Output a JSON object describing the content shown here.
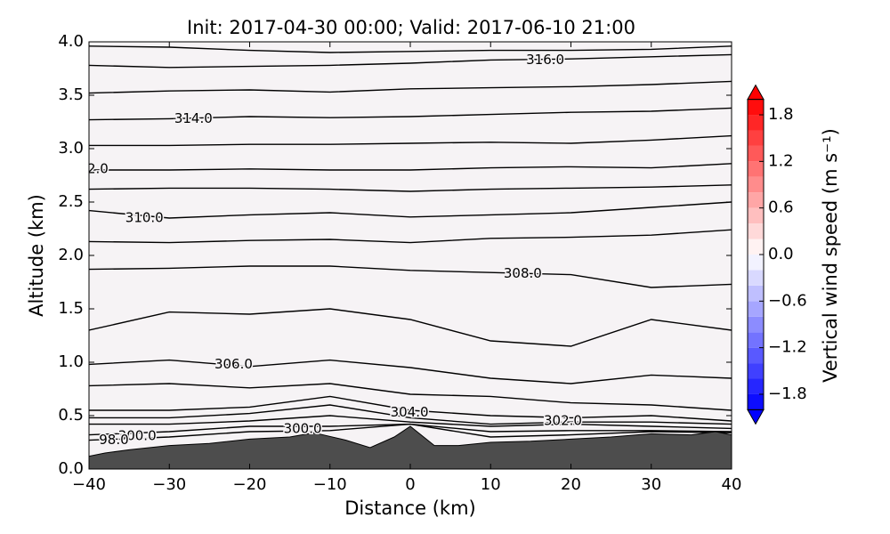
{
  "chart_data": {
    "type": "contour",
    "title": "Init: 2017-04-30 00:00; Valid: 2017-06-10 21:00",
    "xlabel": "Distance (km)",
    "ylabel": "Altitude (km)",
    "xlim": [
      -40,
      40
    ],
    "ylim": [
      0,
      4
    ],
    "xticks": [
      {
        "value": -40,
        "label": "−40"
      },
      {
        "value": -30,
        "label": "−30"
      },
      {
        "value": -20,
        "label": "−20"
      },
      {
        "value": -10,
        "label": "−10"
      },
      0,
      10,
      20,
      30,
      40
    ],
    "yticks": [
      {
        "value": 0,
        "label": "0.0"
      },
      {
        "value": 0.5,
        "label": "0.5"
      },
      {
        "value": 1,
        "label": "1.0"
      },
      {
        "value": 1.5,
        "label": "1.5"
      },
      {
        "value": 2,
        "label": "2.0"
      },
      {
        "value": 2.5,
        "label": "2.5"
      },
      {
        "value": 3,
        "label": "3.0"
      },
      {
        "value": 3.5,
        "label": "3.5"
      },
      {
        "value": 4,
        "label": "4.0"
      }
    ],
    "contour_color": "#000000",
    "contour_x": [
      -40,
      -30,
      -20,
      -10,
      0,
      10,
      20,
      30,
      40
    ],
    "contours": [
      {
        "level": 317,
        "y": [
          3.96,
          3.95,
          3.92,
          3.9,
          3.91,
          3.92,
          3.92,
          3.93,
          3.96
        ]
      },
      {
        "level": 316,
        "y": [
          3.78,
          3.76,
          3.77,
          3.78,
          3.8,
          3.83,
          3.84,
          3.86,
          3.88
        ]
      },
      {
        "level": 315,
        "y": [
          3.52,
          3.54,
          3.55,
          3.53,
          3.56,
          3.57,
          3.58,
          3.6,
          3.63
        ]
      },
      {
        "level": 314,
        "y": [
          3.27,
          3.28,
          3.3,
          3.29,
          3.3,
          3.32,
          3.34,
          3.35,
          3.38
        ]
      },
      {
        "level": 313,
        "y": [
          3.03,
          3.03,
          3.04,
          3.04,
          3.05,
          3.06,
          3.05,
          3.08,
          3.12
        ]
      },
      {
        "level": 312,
        "y": [
          2.8,
          2.8,
          2.81,
          2.8,
          2.8,
          2.82,
          2.83,
          2.82,
          2.86
        ]
      },
      {
        "level": 311,
        "y": [
          2.62,
          2.63,
          2.63,
          2.62,
          2.6,
          2.62,
          2.63,
          2.64,
          2.66
        ]
      },
      {
        "level": 310,
        "y": [
          2.42,
          2.35,
          2.38,
          2.4,
          2.36,
          2.38,
          2.4,
          2.45,
          2.5
        ]
      },
      {
        "level": 309,
        "y": [
          2.13,
          2.12,
          2.14,
          2.15,
          2.12,
          2.16,
          2.17,
          2.19,
          2.24
        ]
      },
      {
        "level": 308,
        "y": [
          1.87,
          1.88,
          1.9,
          1.9,
          1.86,
          1.84,
          1.82,
          1.7,
          1.73
        ]
      },
      {
        "level": 307,
        "y": [
          1.3,
          1.47,
          1.45,
          1.5,
          1.4,
          1.2,
          1.15,
          1.4,
          1.3
        ]
      },
      {
        "level": 306,
        "y": [
          0.98,
          1.02,
          0.96,
          1.02,
          0.95,
          0.85,
          0.8,
          0.88,
          0.85
        ]
      },
      {
        "level": 305,
        "y": [
          0.78,
          0.8,
          0.76,
          0.8,
          0.7,
          0.68,
          0.62,
          0.6,
          0.55
        ]
      },
      {
        "level": 304,
        "y": [
          0.55,
          0.55,
          0.58,
          0.68,
          0.55,
          0.5,
          0.48,
          0.5,
          0.45
        ]
      },
      {
        "level": 303,
        "y": [
          0.48,
          0.48,
          0.52,
          0.6,
          0.48,
          0.42,
          0.44,
          0.44,
          0.42
        ]
      },
      {
        "level": 302,
        "y": [
          0.42,
          0.42,
          0.45,
          0.5,
          0.44,
          0.4,
          0.42,
          0.4,
          0.38
        ]
      },
      {
        "level": 300,
        "y": [
          0.32,
          0.35,
          0.4,
          0.4,
          0.42,
          0.35,
          0.36,
          0.36,
          0.35
        ]
      },
      {
        "level": 298,
        "y": [
          0.27,
          0.3,
          0.35,
          0.36,
          0.42,
          0.3,
          0.32,
          0.35,
          0.34
        ]
      }
    ],
    "contour_labels": [
      {
        "text": "316.0",
        "x": 16.8,
        "y": 3.83
      },
      {
        "text": "314.0",
        "x": -27,
        "y": 3.28
      },
      {
        "text": "2.0",
        "x": -38.9,
        "y": 2.81
      },
      {
        "text": "310.0",
        "x": -33.1,
        "y": 2.35
      },
      {
        "text": "308.0",
        "x": 14,
        "y": 1.83
      },
      {
        "text": "306.0",
        "x": -22,
        "y": 0.98
      },
      {
        "text": "304.0",
        "x": -0.1,
        "y": 0.53
      },
      {
        "text": "302.0",
        "x": 19,
        "y": 0.45
      },
      {
        "text": "300.0",
        "x": -34,
        "y": 0.31
      },
      {
        "text": "98.0",
        "x": -36.9,
        "y": 0.27
      },
      {
        "text": "300.0",
        "x": -13.4,
        "y": 0.375
      }
    ],
    "terrain": {
      "color": "#4d4d4d",
      "x": [
        -40,
        -38,
        -35,
        -30,
        -25,
        -20,
        -15,
        -12,
        -8,
        -5,
        -2,
        0,
        3,
        6,
        10,
        15,
        20,
        25,
        30,
        35,
        38,
        40
      ],
      "y": [
        0.12,
        0.15,
        0.18,
        0.22,
        0.24,
        0.28,
        0.3,
        0.34,
        0.27,
        0.2,
        0.3,
        0.4,
        0.22,
        0.22,
        0.25,
        0.26,
        0.28,
        0.3,
        0.33,
        0.32,
        0.35,
        0.32
      ]
    },
    "colorbar": {
      "label": "Vertical wind speed (m s⁻¹)",
      "colormap": "bwr",
      "lim": [
        -2,
        2
      ],
      "levels": [
        -2,
        -1.8,
        -1.6,
        -1.4,
        -1.2,
        -1,
        -0.8,
        -0.6,
        -0.4,
        -0.2,
        0,
        0.2,
        0.4,
        0.6,
        0.8,
        1,
        1.2,
        1.4,
        1.6,
        1.8,
        2
      ],
      "ticks": [
        {
          "value": -1.8,
          "label": "−1.8"
        },
        {
          "value": -1.2,
          "label": "−1.2"
        },
        {
          "value": -0.6,
          "label": "−0.6"
        },
        {
          "value": 0,
          "label": "0.0"
        },
        {
          "value": 0.6,
          "label": "0.6"
        },
        {
          "value": 1.2,
          "label": "1.2"
        },
        {
          "value": 1.8,
          "label": "1.8"
        }
      ]
    }
  }
}
